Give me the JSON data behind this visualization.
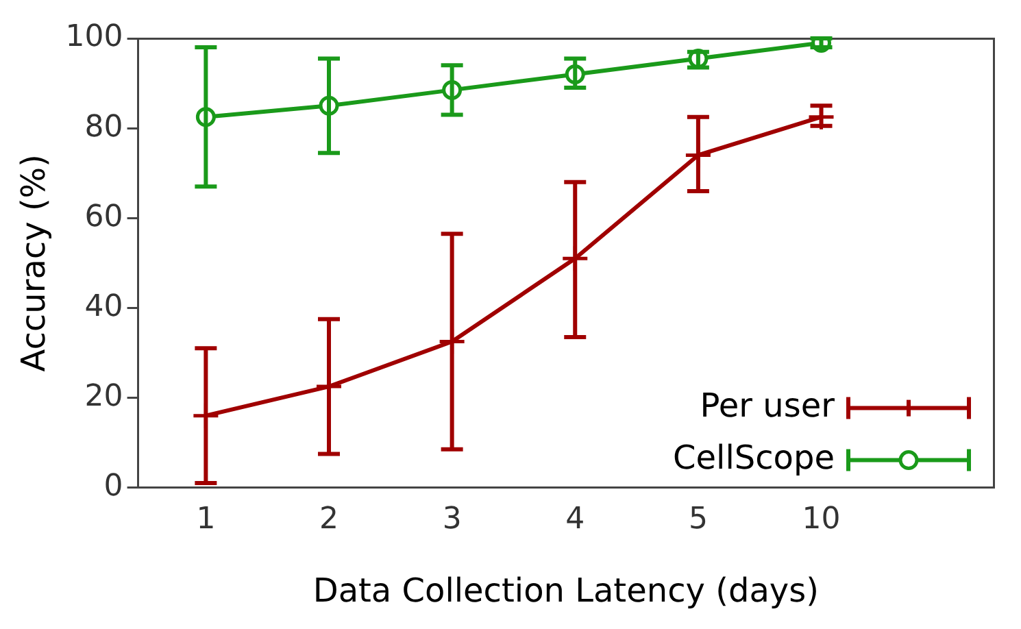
{
  "chart_data": {
    "type": "line",
    "xlabel": "Data Collection Latency (days)",
    "ylabel": "Accuracy (%)",
    "categories": [
      "1",
      "2",
      "3",
      "4",
      "5",
      "10"
    ],
    "series": [
      {
        "name": "Per user",
        "color": "#a00000",
        "marker": "cross",
        "values": [
          16,
          22.5,
          32.5,
          51,
          74,
          82.5
        ],
        "errors": [
          [
            1,
            31
          ],
          [
            7.5,
            37.5
          ],
          [
            8.5,
            56.5
          ],
          [
            33.5,
            68
          ],
          [
            66,
            82.5
          ],
          [
            80.5,
            85
          ]
        ]
      },
      {
        "name": "CellScope",
        "color": "#1a9a1a",
        "marker": "circle",
        "values": [
          82.5,
          85,
          88.5,
          92,
          95.5,
          99
        ],
        "errors": [
          [
            67,
            98
          ],
          [
            74.5,
            95.5
          ],
          [
            83,
            94
          ],
          [
            89,
            95.5
          ],
          [
            93.5,
            97
          ],
          [
            98,
            100
          ]
        ]
      }
    ],
    "ylim": [
      0,
      100
    ],
    "yticks": [
      0,
      20,
      40,
      60,
      80,
      100
    ],
    "grid": false,
    "legend": "bottom right"
  }
}
